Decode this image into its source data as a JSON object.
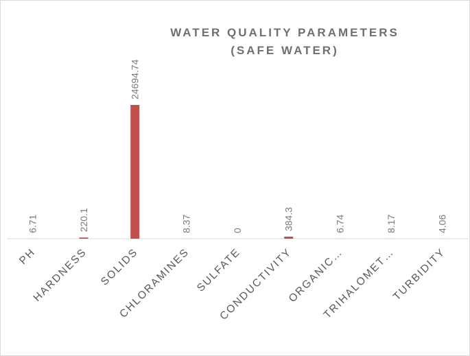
{
  "chart_data": {
    "type": "bar",
    "title_line1": "WATER QUALITY PARAMETERS",
    "title_line2": "(SAFE WATER)",
    "categories": [
      "PH",
      "HARDNESS",
      "SOLIDS",
      "CHLORAMINES",
      "SULFATE",
      "CONDUCTIVITY",
      "ORGANIC…",
      "TRIHALOMET…",
      "TURBIDITY"
    ],
    "values": [
      6.71,
      220.1,
      24694.74,
      8.37,
      0,
      384.3,
      6.74,
      8.17,
      4.06
    ],
    "data_labels": [
      "6.71",
      "220.1",
      "24694.74",
      "8.37",
      "0",
      "384.3",
      "6.74",
      "8.17",
      "4.06"
    ],
    "ylim": [
      0,
      24694.74
    ],
    "bar_color": "#c0504d",
    "axis_color": "#d9d9d9",
    "grid": false,
    "legend": "none"
  }
}
